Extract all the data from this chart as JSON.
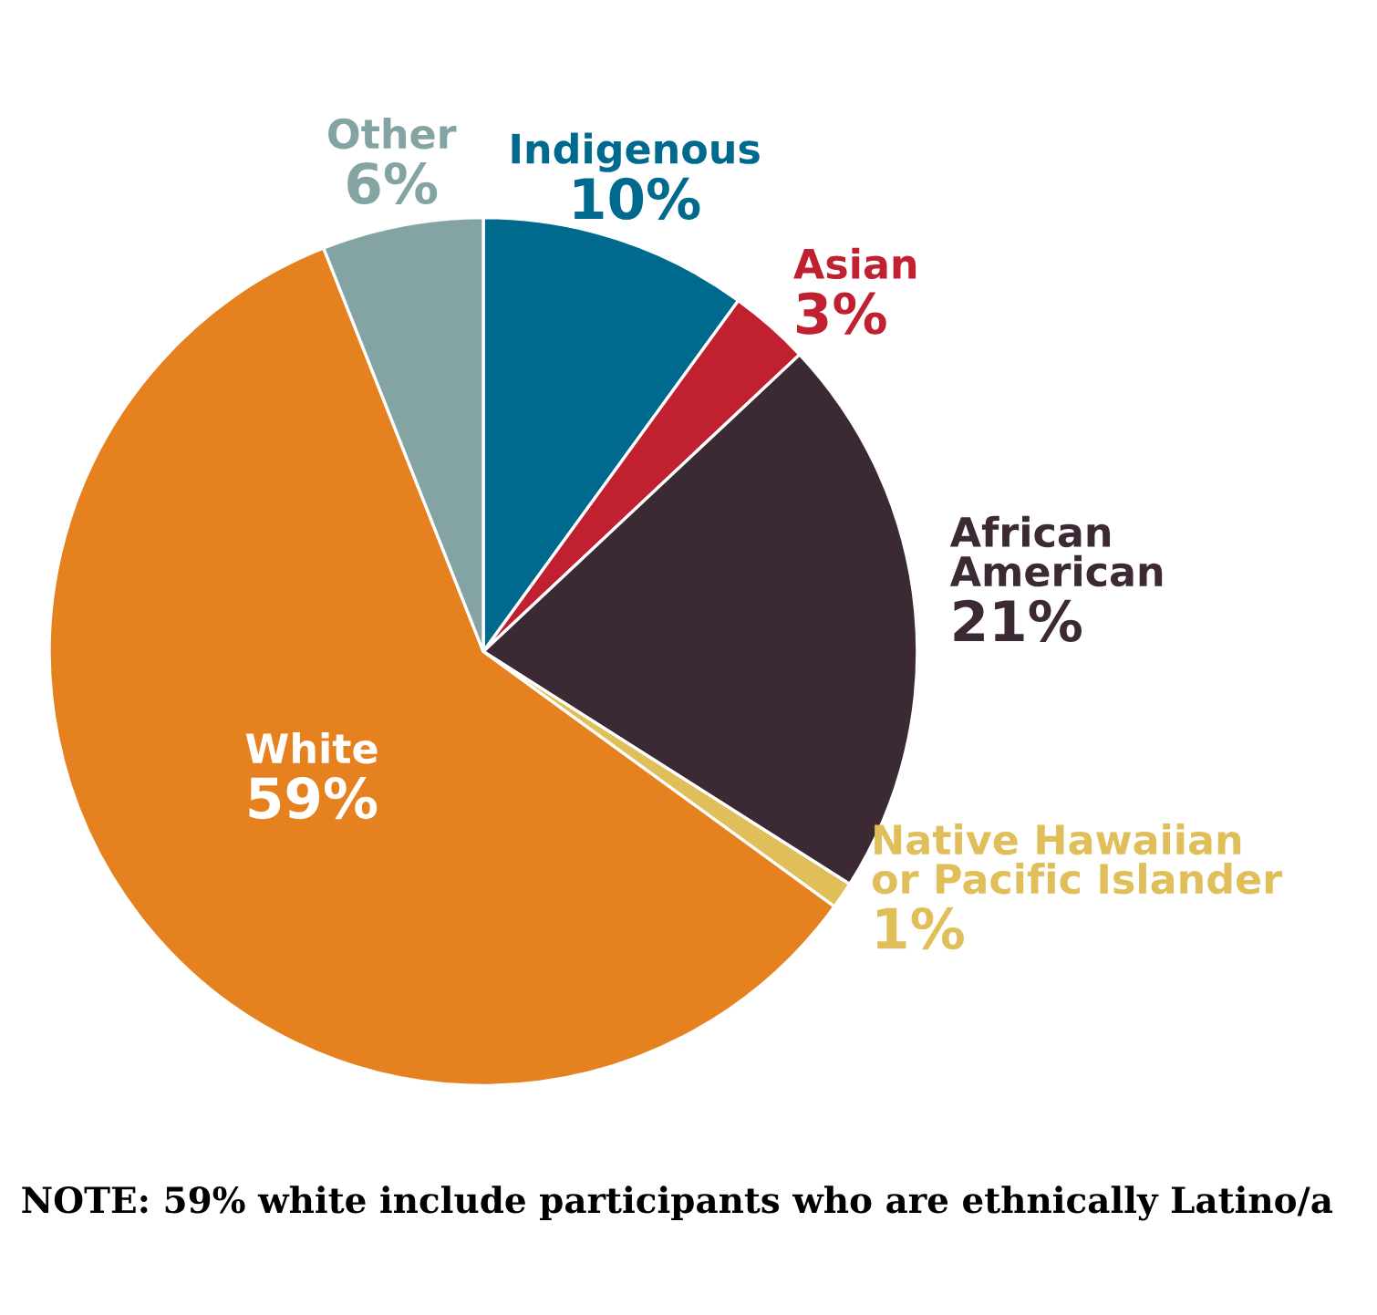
{
  "chart_data": {
    "type": "pie",
    "categories": [
      "Indigenous",
      "Asian",
      "African\nAmerican",
      "Native Hawaiian\nor Pacific Islander",
      "White",
      "Other"
    ],
    "values": [
      10,
      3,
      21,
      1,
      59,
      6
    ],
    "value_labels": [
      "10%",
      "3%",
      "21%",
      "1%",
      "59%",
      "6%"
    ],
    "colors": [
      "#006a8e",
      "#c0202f",
      "#3b2a33",
      "#e0be5a",
      "#e5821f",
      "#84a4a3"
    ],
    "annotations": [
      "NOTE: 59% white include participants who are ethnically Latino/a"
    ]
  }
}
